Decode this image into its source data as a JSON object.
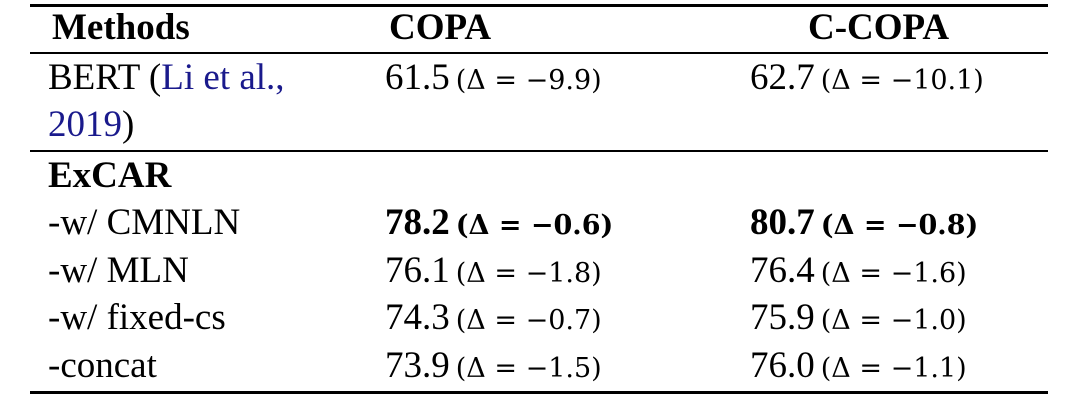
{
  "table": {
    "header": [
      "Methods",
      "COPA",
      "C-COPA"
    ],
    "baseline": {
      "prefix": "BERT (",
      "citation": "Li et al., 2019",
      "suffix": ")",
      "copa": {
        "value": "61.5",
        "delta": "(Δ = −9.9)"
      },
      "ccopa": {
        "value": "62.7",
        "delta": "(Δ = −10.1)"
      }
    },
    "group": "ExCAR",
    "rows": [
      {
        "method": "-w/ CMNLN",
        "bold": true,
        "copa": {
          "value": "78.2",
          "delta": "(Δ = −0.6)"
        },
        "ccopa": {
          "value": "80.7",
          "delta": "(Δ = −0.8)"
        }
      },
      {
        "method": "-w/ MLN",
        "bold": false,
        "copa": {
          "value": "76.1",
          "delta": "(Δ = −1.8)"
        },
        "ccopa": {
          "value": "76.4",
          "delta": "(Δ = −1.6)"
        }
      },
      {
        "method": "-w/ fixed-cs",
        "bold": false,
        "copa": {
          "value": "74.3",
          "delta": "(Δ = −0.7)"
        },
        "ccopa": {
          "value": "75.9",
          "delta": "(Δ = −1.0)"
        }
      },
      {
        "method": "-concat",
        "bold": false,
        "copa": {
          "value": "73.9",
          "delta": "(Δ = −1.5)"
        },
        "ccopa": {
          "value": "76.0",
          "delta": "(Δ = −1.1)"
        }
      }
    ]
  }
}
